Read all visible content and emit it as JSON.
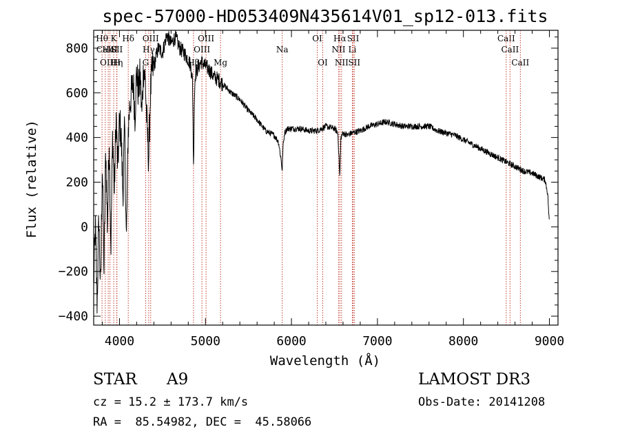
{
  "chart_data": {
    "type": "line",
    "title": "spec-57000-HD053409N435614V01_sp12-013.fits",
    "xlabel": "Wavelength (Å)",
    "ylabel": "Flux (relative)",
    "xlim": [
      3700,
      9100
    ],
    "ylim": [
      -440,
      880
    ],
    "x_ticks": [
      4000,
      5000,
      6000,
      7000,
      8000,
      9000
    ],
    "y_ticks": [
      -400,
      -200,
      0,
      200,
      400,
      600,
      800
    ],
    "grid": false,
    "legend": "none",
    "line_color": "#000000",
    "marker_color": "#c0392b",
    "series": [
      {
        "x": [
          3700,
          3720,
          3740,
          3760,
          3780,
          3800,
          3820,
          3840,
          3860,
          3880,
          3900,
          3920,
          3940,
          3960,
          3980,
          4000,
          4020,
          4040,
          4060,
          4080,
          4100,
          4120,
          4140,
          4160,
          4180,
          4200,
          4220,
          4240,
          4260,
          4280,
          4300,
          4320,
          4340,
          4360,
          4380,
          4400,
          4450,
          4500,
          4550,
          4600,
          4650,
          4700,
          4750,
          4800,
          4830,
          4850,
          4861,
          4870,
          4880,
          4900,
          4950,
          5000,
          5050,
          5100,
          5150,
          5200,
          5300,
          5400,
          5500,
          5600,
          5700,
          5800,
          5850,
          5880,
          5893,
          5900,
          5920,
          5950,
          6000,
          6100,
          6200,
          6300,
          6400,
          6500,
          6540,
          6563,
          6575,
          6600,
          6650,
          6700,
          6800,
          6900,
          7000,
          7100,
          7200,
          7300,
          7400,
          7500,
          7600,
          7700,
          7800,
          7900,
          8000,
          8100,
          8200,
          8300,
          8400,
          8500,
          8600,
          8700,
          8800,
          8850,
          8900,
          8950,
          8980,
          8990,
          9000
        ],
        "y": [
          -250,
          0,
          -350,
          50,
          -300,
          300,
          -200,
          350,
          0,
          400,
          -100,
          420,
          150,
          500,
          250,
          480,
          400,
          150,
          450,
          -80,
          420,
          550,
          600,
          650,
          500,
          700,
          600,
          680,
          500,
          720,
          650,
          450,
          300,
          600,
          700,
          720,
          800,
          780,
          860,
          820,
          850,
          800,
          780,
          750,
          720,
          650,
          260,
          550,
          680,
          700,
          740,
          720,
          700,
          670,
          660,
          640,
          600,
          570,
          520,
          480,
          430,
          410,
          380,
          300,
          250,
          350,
          420,
          440,
          440,
          440,
          430,
          430,
          450,
          440,
          420,
          220,
          400,
          420,
          410,
          420,
          430,
          450,
          460,
          470,
          460,
          450,
          450,
          450,
          450,
          430,
          420,
          410,
          390,
          370,
          350,
          330,
          310,
          290,
          270,
          250,
          240,
          230,
          220,
          210,
          150,
          80,
          10
        ]
      }
    ],
    "line_markers": [
      {
        "wavelength": 3797,
        "top": "Hθ"
      },
      {
        "wavelength": 3835,
        "mid": "CaII"
      },
      {
        "wavelength": 3869,
        "bot": "OIII"
      },
      {
        "wavelength": 3889,
        "mid": "HeI"
      },
      {
        "wavelength": 3933,
        "top": "K"
      },
      {
        "wavelength": 3968,
        "mid": "SII",
        "bot": "Hη"
      },
      {
        "wavelength": 3970,
        "bot": "H"
      },
      {
        "wavelength": 4102,
        "top": "Hδ"
      },
      {
        "wavelength": 4304,
        "bot": "G"
      },
      {
        "wavelength": 4340,
        "mid": "Hγ"
      },
      {
        "wavelength": 4363,
        "top": "OIII"
      },
      {
        "wavelength": 4861,
        "bot": "Hβ"
      },
      {
        "wavelength": 4959,
        "mid": "OIII"
      },
      {
        "wavelength": 5007,
        "top": "OIII"
      },
      {
        "wavelength": 5175,
        "bot": "Mg"
      },
      {
        "wavelength": 5893,
        "mid": "Na"
      },
      {
        "wavelength": 6300,
        "top": "OI"
      },
      {
        "wavelength": 6364,
        "bot": "OI"
      },
      {
        "wavelength": 6548,
        "mid": "NII"
      },
      {
        "wavelength": 6563,
        "top": "Hα"
      },
      {
        "wavelength": 6583,
        "bot": "NII"
      },
      {
        "wavelength": 6708,
        "mid": "Li"
      },
      {
        "wavelength": 6717,
        "top": "SII"
      },
      {
        "wavelength": 6731,
        "bot": "SII"
      },
      {
        "wavelength": 8498,
        "top": "CaII"
      },
      {
        "wavelength": 8542,
        "mid": "CaII"
      },
      {
        "wavelength": 8662,
        "bot": "CaII"
      }
    ]
  },
  "info": {
    "object_type": "STAR",
    "subclass": "A9",
    "survey": "LAMOST DR3",
    "redshift_line": "cz = 15.2 ± 173.7 km/s",
    "obs_date_line": "Obs-Date: 20141208",
    "coords_line": "RA =  85.54982, DEC =  45.58066"
  }
}
